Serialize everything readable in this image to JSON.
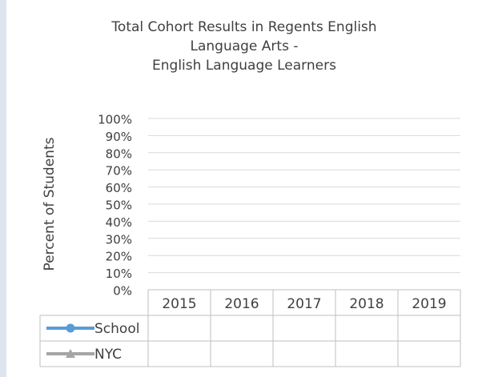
{
  "chart_data": {
    "type": "line",
    "title": [
      "Total Cohort Results in Regents English",
      "Language Arts -",
      "English Language Learners"
    ],
    "y_label": "Percent of Students",
    "categories": [
      "2015",
      "2016",
      "2017",
      "2018",
      "2019"
    ],
    "series": [
      {
        "name": "School",
        "color": "#5b9bd5",
        "marker": "circle",
        "values": [
          null,
          null,
          null,
          null,
          null
        ]
      },
      {
        "name": "NYC",
        "color": "#a5a5a5",
        "marker": "triangle",
        "values": [
          null,
          null,
          null,
          null,
          null
        ]
      }
    ],
    "ylim": [
      0,
      100
    ],
    "yticks": [
      {
        "value": 0,
        "label": "0%"
      },
      {
        "value": 10,
        "label": "10%"
      },
      {
        "value": 20,
        "label": "20%"
      },
      {
        "value": 30,
        "label": "30%"
      },
      {
        "value": 40,
        "label": "40%"
      },
      {
        "value": 50,
        "label": "50%"
      },
      {
        "value": 60,
        "label": "60%"
      },
      {
        "value": 70,
        "label": "70%"
      },
      {
        "value": 80,
        "label": "80%"
      },
      {
        "value": 90,
        "label": "90%"
      },
      {
        "value": 100,
        "label": "100%"
      }
    ],
    "grid": true,
    "data_table": true
  }
}
